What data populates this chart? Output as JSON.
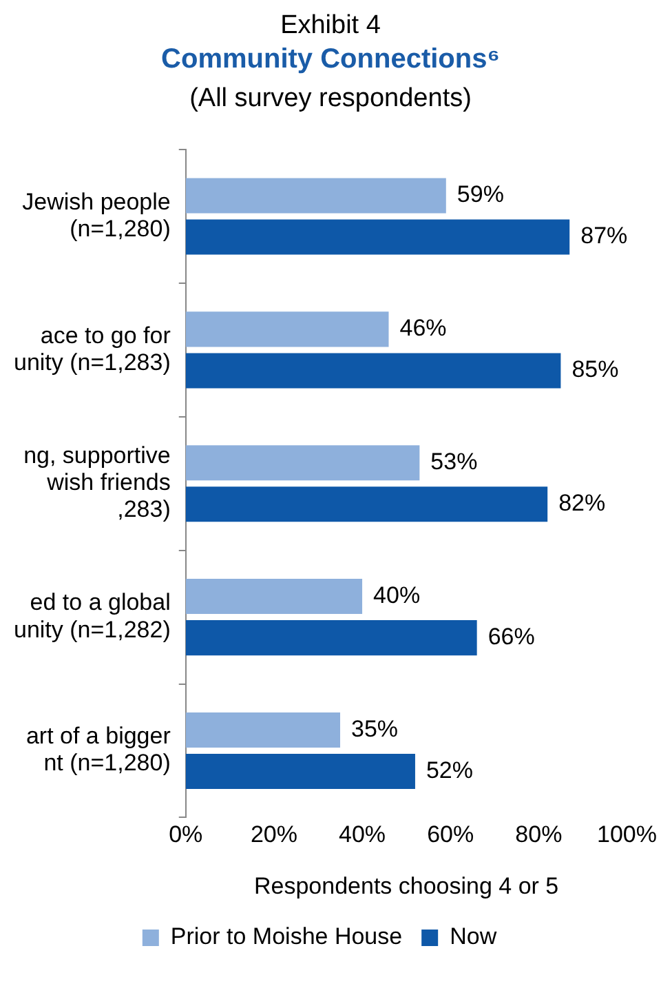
{
  "chart_data": {
    "type": "bar",
    "orientation": "horizontal",
    "annotations": [
      "Exhibit 4"
    ],
    "title": "Community Connections⁶",
    "subtitle": "(All survey respondents)",
    "xlabel": "Respondents choosing 4 or 5",
    "categories": [
      "Jewish people\n(n=1,280)",
      "ace to go for\nunity (n=1,283)",
      "ng, supportive\nwish friends\n,283)",
      "ed to a global\nunity (n=1,282)",
      "art of a bigger\nnt (n=1,280)"
    ],
    "series": [
      {
        "name": "Prior to Moishe House",
        "color": "#8eb0dc",
        "values": [
          59,
          46,
          53,
          40,
          35
        ],
        "value_labels": [
          "59%",
          "46%",
          "53%",
          "40%",
          "35%"
        ]
      },
      {
        "name": "Now",
        "color": "#0e58a8",
        "values": [
          87,
          85,
          82,
          66,
          52
        ],
        "value_labels": [
          "87%",
          "85%",
          "82%",
          "66%",
          "52%"
        ]
      }
    ],
    "xlim": [
      0,
      100
    ],
    "xticks": [
      {
        "value": 0,
        "label": "0%"
      },
      {
        "value": 20,
        "label": "20%"
      },
      {
        "value": 40,
        "label": "40%"
      },
      {
        "value": 60,
        "label": "60%"
      },
      {
        "value": 80,
        "label": "80%"
      },
      {
        "value": 100,
        "label": "100%"
      }
    ],
    "grid": false,
    "legend": "bottom"
  }
}
